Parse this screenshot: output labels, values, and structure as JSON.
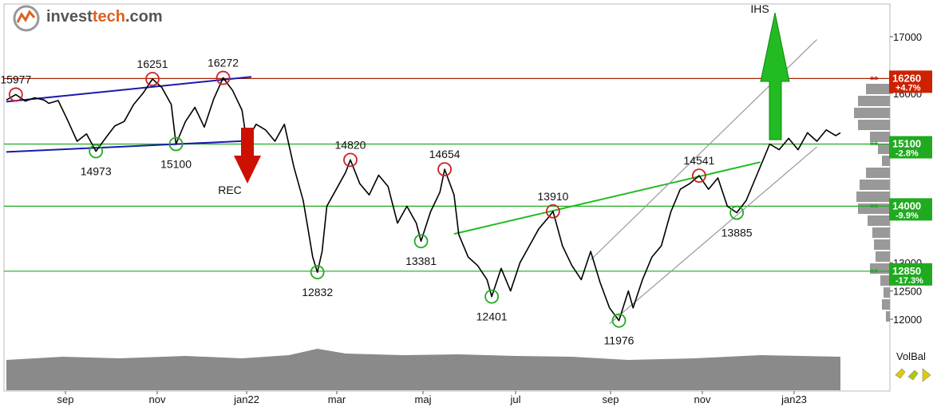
{
  "logo": {
    "part1": "invest",
    "part2": "tech",
    "part3": ".com"
  },
  "chart_data": {
    "type": "line",
    "yticks": [
      12000,
      12500,
      13000,
      14000,
      15000,
      16000,
      17000
    ],
    "ytick_labels": [
      "12000",
      "12500",
      "13000",
      "14000",
      "15000",
      "16000",
      "17000"
    ],
    "xticks": [
      "sep",
      "nov",
      "jan22",
      "mar",
      "maj",
      "jul",
      "sep",
      "nov",
      "jan23"
    ],
    "price": [
      [
        0,
        15880
      ],
      [
        2,
        15977
      ],
      [
        4,
        15860
      ],
      [
        6,
        15920
      ],
      [
        8,
        15880
      ],
      [
        9,
        15820
      ],
      [
        11,
        15870
      ],
      [
        13,
        15520
      ],
      [
        15,
        15150
      ],
      [
        17,
        15280
      ],
      [
        19,
        14973
      ],
      [
        21,
        15200
      ],
      [
        23,
        15420
      ],
      [
        25,
        15500
      ],
      [
        27,
        15800
      ],
      [
        29,
        16000
      ],
      [
        31,
        16251
      ],
      [
        33,
        16100
      ],
      [
        35,
        15800
      ],
      [
        36,
        15100
      ],
      [
        38,
        15500
      ],
      [
        40,
        15750
      ],
      [
        42,
        15400
      ],
      [
        44,
        15900
      ],
      [
        46,
        16272
      ],
      [
        48,
        16050
      ],
      [
        50,
        15700
      ],
      [
        51,
        15150
      ],
      [
        53,
        15450
      ],
      [
        55,
        15350
      ],
      [
        57,
        15150
      ],
      [
        59,
        15450
      ],
      [
        61,
        14700
      ],
      [
        63,
        14100
      ],
      [
        64,
        13600
      ],
      [
        65,
        13100
      ],
      [
        66,
        12832
      ],
      [
        67,
        13200
      ],
      [
        68,
        14000
      ],
      [
        70,
        14300
      ],
      [
        72,
        14600
      ],
      [
        73,
        14820
      ],
      [
        75,
        14400
      ],
      [
        77,
        14200
      ],
      [
        79,
        14550
      ],
      [
        81,
        14350
      ],
      [
        83,
        13700
      ],
      [
        85,
        14000
      ],
      [
        87,
        13700
      ],
      [
        88,
        13381
      ],
      [
        90,
        13900
      ],
      [
        92,
        14250
      ],
      [
        93,
        14654
      ],
      [
        95,
        14200
      ],
      [
        96,
        13500
      ],
      [
        98,
        13100
      ],
      [
        100,
        12950
      ],
      [
        102,
        12700
      ],
      [
        103,
        12401
      ],
      [
        105,
        12900
      ],
      [
        107,
        12500
      ],
      [
        109,
        13000
      ],
      [
        111,
        13300
      ],
      [
        113,
        13600
      ],
      [
        115,
        13800
      ],
      [
        116,
        13910
      ],
      [
        118,
        13300
      ],
      [
        120,
        12950
      ],
      [
        122,
        12700
      ],
      [
        124,
        13200
      ],
      [
        126,
        12650
      ],
      [
        128,
        12200
      ],
      [
        130,
        11976
      ],
      [
        132,
        12500
      ],
      [
        133,
        12200
      ],
      [
        135,
        12700
      ],
      [
        137,
        13100
      ],
      [
        139,
        13300
      ],
      [
        141,
        13900
      ],
      [
        143,
        14300
      ],
      [
        145,
        14400
      ],
      [
        147,
        14541
      ],
      [
        149,
        14300
      ],
      [
        151,
        14500
      ],
      [
        153,
        14000
      ],
      [
        155,
        13885
      ],
      [
        157,
        14100
      ],
      [
        159,
        14500
      ],
      [
        161,
        14900
      ],
      [
        162,
        15100
      ],
      [
        164,
        15000
      ],
      [
        166,
        15200
      ],
      [
        168,
        15000
      ],
      [
        170,
        15300
      ],
      [
        172,
        15150
      ],
      [
        174,
        15350
      ],
      [
        176,
        15250
      ],
      [
        177,
        15300
      ]
    ],
    "volume": [
      [
        0,
        38
      ],
      [
        12,
        42
      ],
      [
        24,
        40
      ],
      [
        38,
        43
      ],
      [
        50,
        40
      ],
      [
        60,
        44
      ],
      [
        66,
        52
      ],
      [
        72,
        46
      ],
      [
        84,
        44
      ],
      [
        96,
        45
      ],
      [
        108,
        43
      ],
      [
        120,
        42
      ],
      [
        132,
        38
      ],
      [
        146,
        40
      ],
      [
        160,
        44
      ],
      [
        177,
        42
      ]
    ],
    "channels": [
      {
        "name": "blue-top",
        "from": [
          0,
          15850
        ],
        "to": [
          52,
          16290
        ],
        "color": "#1a1aaa"
      },
      {
        "name": "blue-bottom",
        "from": [
          0,
          14960
        ],
        "to": [
          52,
          15160
        ],
        "color": "#1a1aaa"
      },
      {
        "name": "green-trend",
        "from": [
          95,
          13510
        ],
        "to": [
          160,
          14780
        ],
        "color": "#22bb22"
      },
      {
        "name": "grey-upper",
        "from": [
          124,
          13050
        ],
        "to": [
          172,
          16950
        ],
        "color": "#999999"
      },
      {
        "name": "grey-lower",
        "from": [
          128,
          11920
        ],
        "to": [
          172,
          15050
        ],
        "color": "#999999"
      }
    ],
    "levels": [
      {
        "value": 16260,
        "label": "16260",
        "pct": "+4.7%",
        "color": "#aa2200",
        "tag_color": "#cc2200"
      },
      {
        "value": 15100,
        "label": "15100",
        "pct": "-2.8%",
        "color": "#22aa22",
        "tag_color": "#1faa1f"
      },
      {
        "value": 14000,
        "label": "14000",
        "pct": "-9.9%",
        "color": "#22aa22",
        "tag_color": "#1faa1f"
      },
      {
        "value": 12850,
        "label": "12850",
        "pct": "-17.3%",
        "color": "#22aa22",
        "tag_color": "#1faa1f"
      }
    ],
    "markers": [
      {
        "x": 2,
        "y": 15977,
        "label": "15977",
        "type": "high"
      },
      {
        "x": 31,
        "y": 16251,
        "label": "16251",
        "type": "high"
      },
      {
        "x": 46,
        "y": 16272,
        "label": "16272",
        "type": "high"
      },
      {
        "x": 19,
        "y": 14973,
        "label": "14973",
        "type": "low"
      },
      {
        "x": 36,
        "y": 15100,
        "label": "15100",
        "type": "low"
      },
      {
        "x": 66,
        "y": 12832,
        "label": "12832",
        "type": "low"
      },
      {
        "x": 73,
        "y": 14820,
        "label": "14820",
        "type": "high"
      },
      {
        "x": 88,
        "y": 13381,
        "label": "13381",
        "type": "low"
      },
      {
        "x": 93,
        "y": 14654,
        "label": "14654",
        "type": "high"
      },
      {
        "x": 103,
        "y": 12401,
        "label": "12401",
        "type": "low"
      },
      {
        "x": 116,
        "y": 13910,
        "label": "13910",
        "type": "high"
      },
      {
        "x": 130,
        "y": 11976,
        "label": "11976",
        "type": "low"
      },
      {
        "x": 147,
        "y": 14541,
        "label": "14541",
        "type": "high"
      },
      {
        "x": 155,
        "y": 13885,
        "label": "13885",
        "type": "low"
      }
    ],
    "signals": [
      {
        "label": "REC",
        "direction": "down",
        "color": "#cc1100"
      },
      {
        "label": "IHS",
        "direction": "up",
        "color": "#22bb22"
      }
    ],
    "volbal_label": "VolBal",
    "colors": {
      "price": "#000000",
      "up": "#22aa22",
      "down": "#cc2200",
      "volume": "#8a8a8a",
      "histogram": "#999999"
    }
  }
}
